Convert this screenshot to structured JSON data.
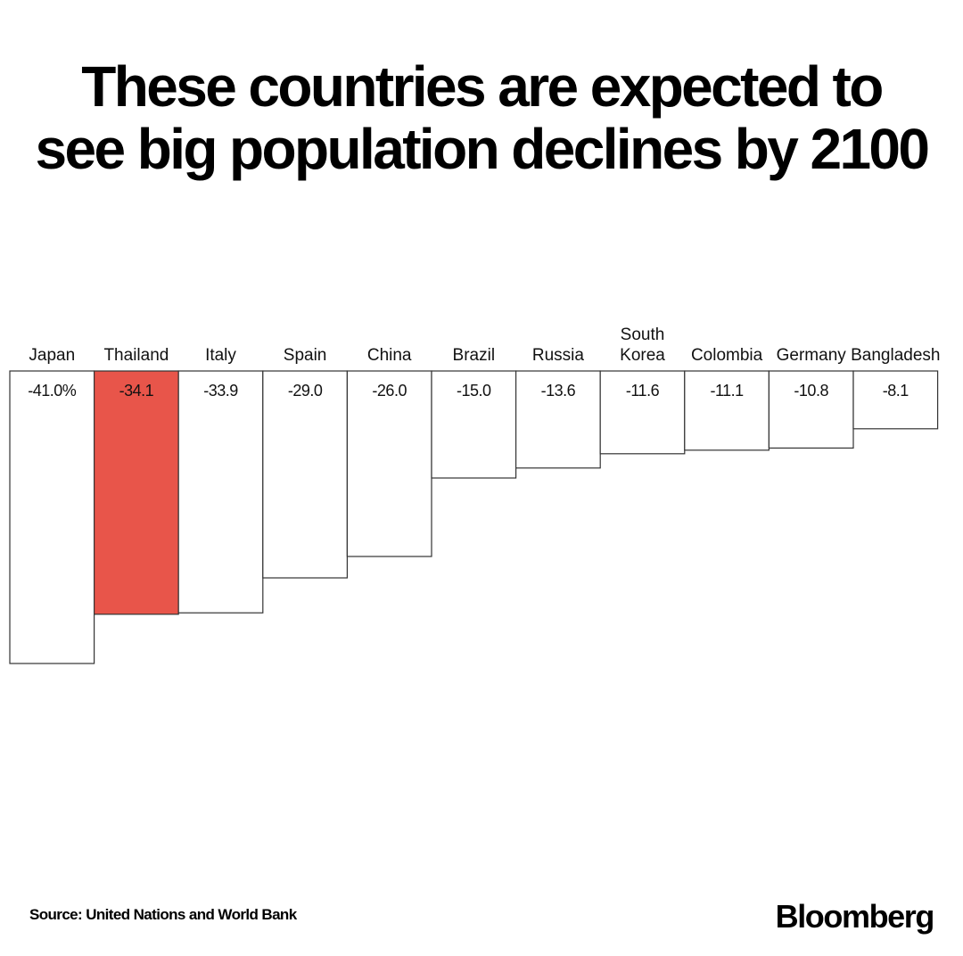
{
  "title": {
    "line1": "These countries are expected to",
    "line2": "see big population declines by 2100"
  },
  "chart_data": {
    "type": "bar",
    "title": "These countries are expected to see big population declines by 2100",
    "xlabel": "",
    "ylabel": "",
    "categories": [
      "Japan",
      "Thailand",
      "Italy",
      "Spain",
      "China",
      "Brazil",
      "Russia",
      "South Korea",
      "Colombia",
      "Germany",
      "Bangladesh"
    ],
    "category_lines": [
      [
        "Japan"
      ],
      [
        "Thailand"
      ],
      [
        "Italy"
      ],
      [
        "Spain"
      ],
      [
        "China"
      ],
      [
        "Brazil"
      ],
      [
        "Russia"
      ],
      [
        "South",
        "Korea"
      ],
      [
        "Colombia"
      ],
      [
        "Germany"
      ],
      [
        "Bangladesh"
      ]
    ],
    "values": [
      -41.0,
      -34.1,
      -33.9,
      -29.0,
      -26.0,
      -15.0,
      -13.6,
      -11.6,
      -11.1,
      -10.8,
      -8.1
    ],
    "value_labels": [
      "-41.0%",
      "-34.1",
      "-33.9",
      "-29.0",
      "-26.0",
      "-15.0",
      "-13.6",
      "-11.6",
      "-11.1",
      "-10.8",
      "-8.1"
    ],
    "highlight": "Thailand",
    "colors": {
      "bar_fill": "#ffffff",
      "bar_stroke": "#333333",
      "highlight_fill": "#e8554a"
    },
    "orientation": "downward from top baseline",
    "grid": false,
    "legend": "none"
  },
  "footer": {
    "source": "Source: United Nations and World Bank",
    "brand": "Bloomberg"
  }
}
